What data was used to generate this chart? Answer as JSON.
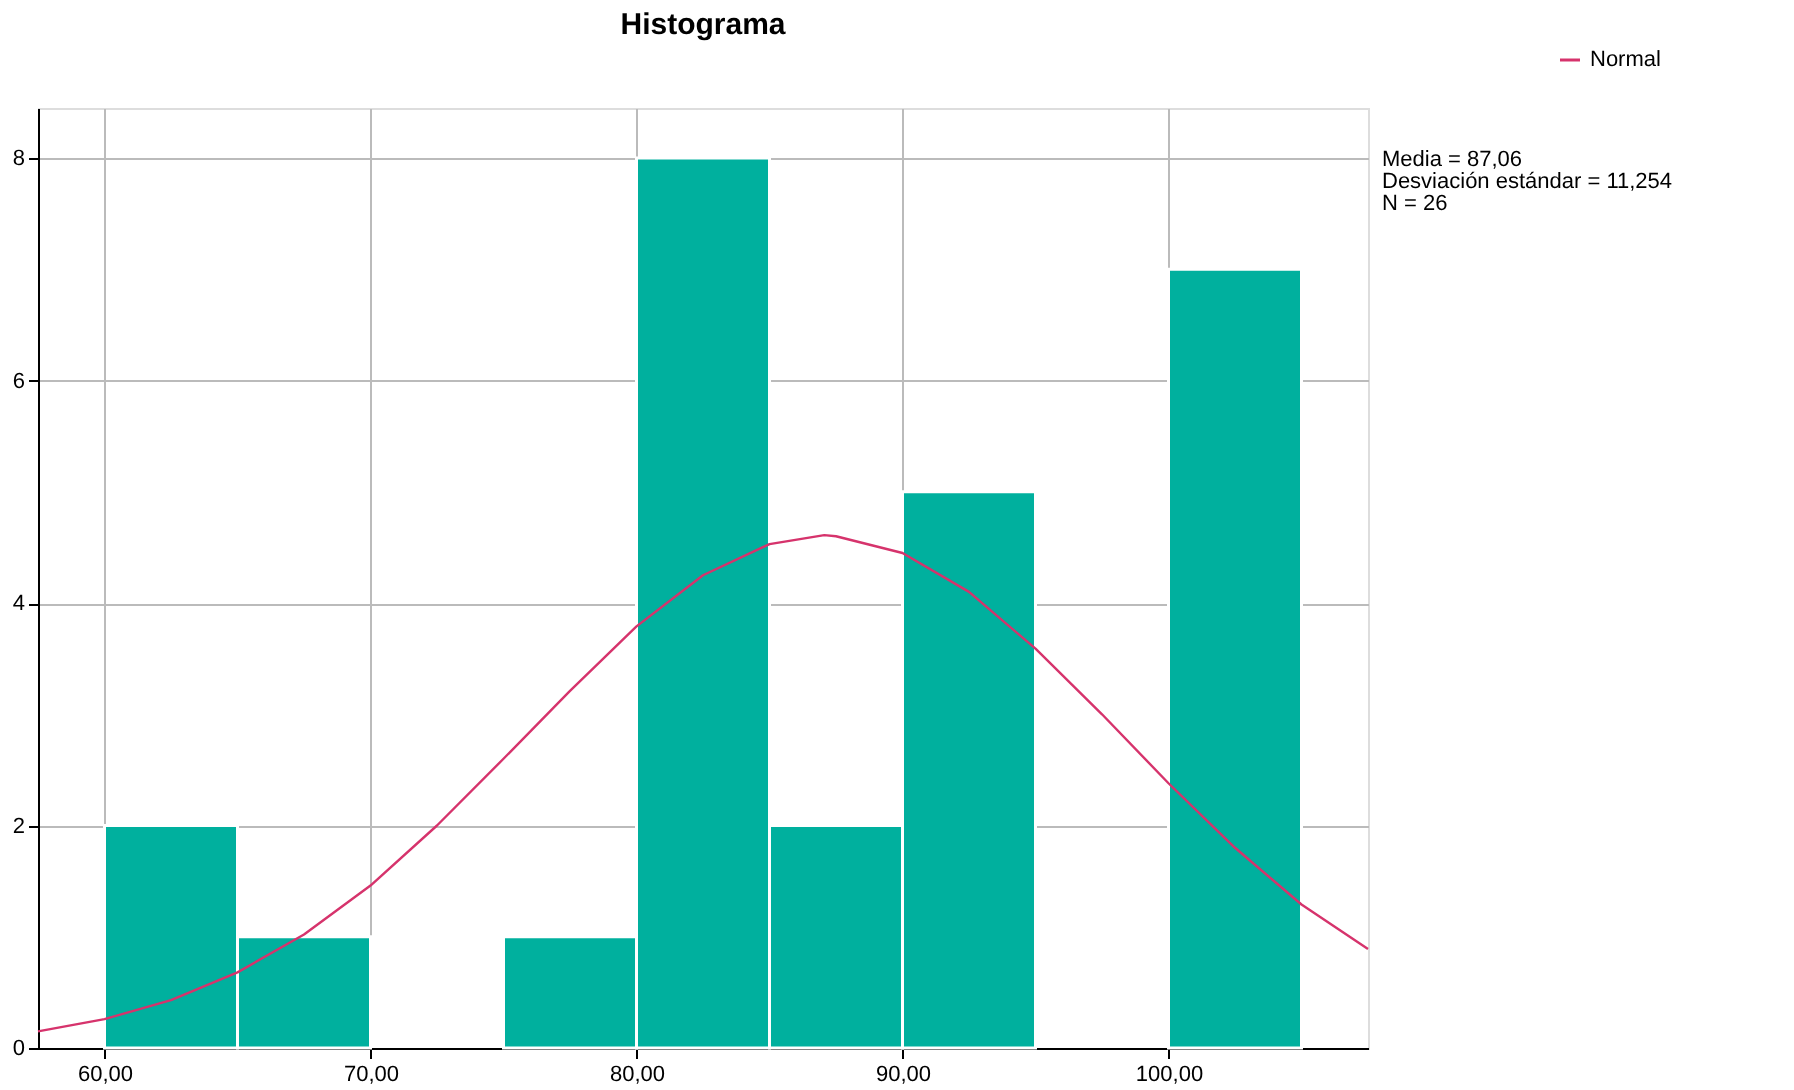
{
  "chart_data": {
    "type": "histogram",
    "title": "Histograma",
    "bins": [
      60,
      65,
      70,
      75,
      80,
      85,
      90,
      95,
      100,
      105
    ],
    "values": [
      2,
      1,
      0,
      1,
      8,
      2,
      5,
      0,
      7
    ],
    "color": "#00b09e",
    "series": [
      {
        "type": "line",
        "name": "Normal",
        "color": "#d6336c",
        "x": [
          57.5,
          60,
          62.5,
          65,
          67.5,
          70,
          72.5,
          75,
          77.5,
          80,
          82.5,
          85,
          87.06,
          87.5,
          90,
          92.5,
          95,
          97.5,
          100,
          102.5,
          105,
          107.5
        ],
        "values": [
          0.15,
          0.26,
          0.43,
          0.68,
          1.02,
          1.46,
          2.0,
          2.6,
          3.21,
          3.79,
          4.25,
          4.53,
          4.61,
          4.6,
          4.45,
          4.1,
          3.59,
          3.0,
          2.38,
          1.8,
          1.29,
          0.89
        ]
      }
    ],
    "xlim": [
      57.5,
      107.5
    ],
    "xticks": [
      {
        "value": 60,
        "label": "60,00"
      },
      {
        "value": 70,
        "label": "70,00"
      },
      {
        "value": 80,
        "label": "80,00"
      },
      {
        "value": 90,
        "label": "90,00"
      },
      {
        "value": 100,
        "label": "100,00"
      }
    ],
    "ylim": [
      0,
      8.45
    ],
    "yticks": [
      0,
      2,
      4,
      6,
      8
    ],
    "grid": true,
    "legend": "top right",
    "line_style": "solid",
    "marker": "none",
    "annotations": [
      "Media = 87,06",
      "Desviación estándar = 11,254",
      "N = 26"
    ]
  }
}
